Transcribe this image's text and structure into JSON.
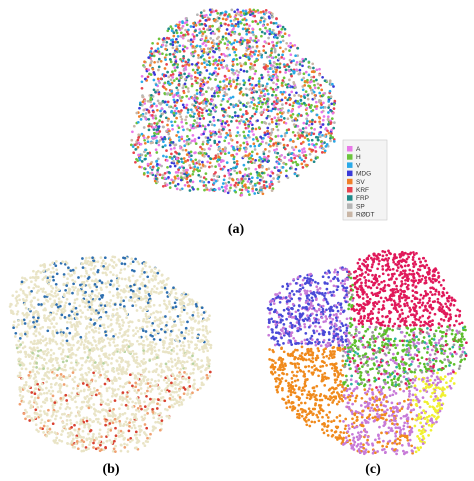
{
  "chart_data": [
    {
      "type": "scatter",
      "panel_label": "(a)",
      "title": "",
      "xlabel": "",
      "ylabel": "",
      "coloring": "categorical",
      "series": [
        {
          "name": "A",
          "color": "#e879e8",
          "weight": 14
        },
        {
          "name": "H",
          "color": "#6cc43c",
          "weight": 14
        },
        {
          "name": "V",
          "color": "#2aa9e8",
          "weight": 12
        },
        {
          "name": "MDG",
          "color": "#3a3ad8",
          "weight": 8
        },
        {
          "name": "SV",
          "color": "#f07f2a",
          "weight": 12
        },
        {
          "name": "KRF",
          "color": "#e8434f",
          "weight": 12
        },
        {
          "name": "FRP",
          "color": "#1e8a8a",
          "weight": 10
        },
        {
          "name": "SP",
          "color": "#b5b5b5",
          "weight": 8
        },
        {
          "name": "RØDT",
          "color": "#c9b6a6",
          "weight": 10
        }
      ],
      "legend": {
        "position": "right",
        "entries": [
          "A",
          "H",
          "V",
          "MDG",
          "SV",
          "KRF",
          "FRP",
          "SP",
          "RØDT"
        ]
      }
    },
    {
      "type": "scatter",
      "panel_label": "(b)",
      "title": "",
      "xlabel": "",
      "ylabel": "",
      "coloring": "continuous",
      "colors": {
        "base": "#e9e4c6",
        "low": "#d94030",
        "mid": "#f0a070",
        "high": "#2e6fb0"
      },
      "gradient": "red/orange concentrated at bottom, blue/teal concentrated at top",
      "grid": false
    },
    {
      "type": "scatter",
      "panel_label": "(c)",
      "title": "",
      "xlabel": "",
      "ylabel": "",
      "coloring": "clustered",
      "cluster_colors": [
        "#e0185a",
        "#f08a1c",
        "#5cbf2a",
        "#4a4ad8",
        "#c77ad8",
        "#f0f030",
        "#2ab0a0",
        "#9a9a9a"
      ],
      "grid": false
    }
  ],
  "figure": {
    "background": "#ffffff"
  }
}
